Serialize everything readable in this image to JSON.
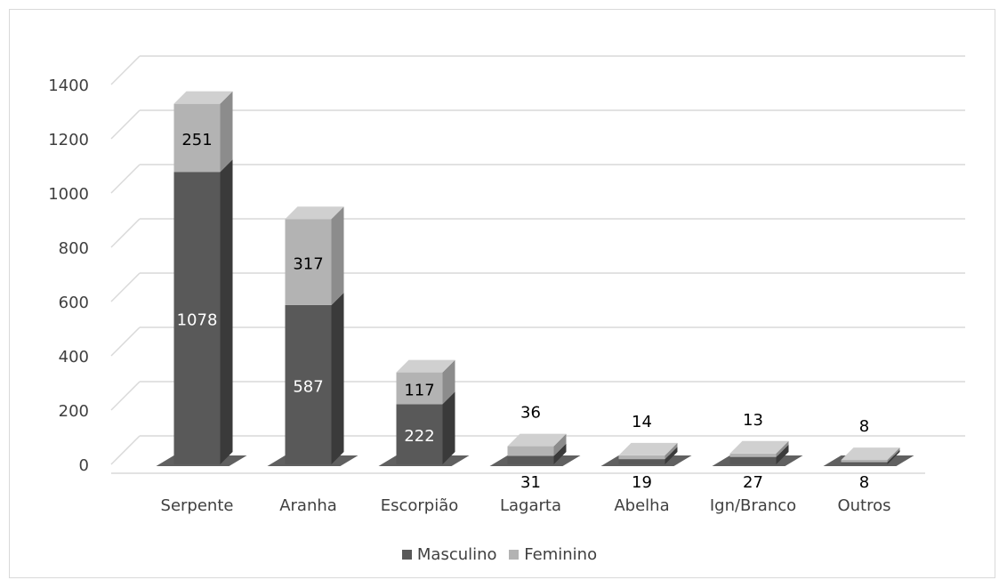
{
  "chart_data": {
    "type": "bar",
    "stacked": true,
    "three_d": true,
    "categories": [
      "Serpente",
      "Aranha",
      "Escorpião",
      "Lagarta",
      "Abelha",
      "Ign/Branco",
      "Outros"
    ],
    "series": [
      {
        "name": "Masculino",
        "values": [
          1078,
          587,
          222,
          31,
          19,
          27,
          8
        ],
        "color": "#595959"
      },
      {
        "name": "Feminino",
        "values": [
          251,
          317,
          117,
          36,
          14,
          13,
          8
        ],
        "color": "#b3b3b3"
      }
    ],
    "ylim": [
      0,
      1400
    ],
    "yticks": [
      0,
      200,
      400,
      600,
      800,
      1000,
      1200,
      1400
    ],
    "grid": true,
    "legend_position": "bottom"
  }
}
